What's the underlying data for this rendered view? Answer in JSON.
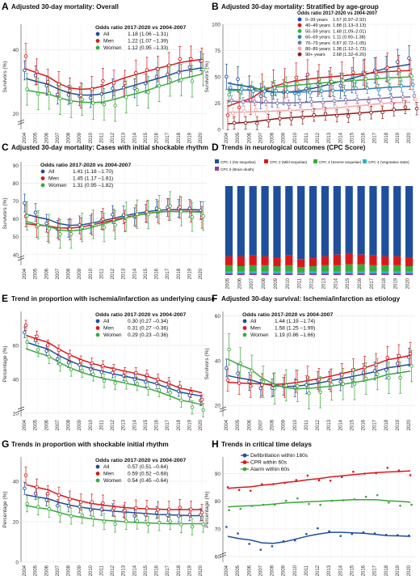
{
  "years": [
    "2004",
    "2005",
    "2006",
    "2007",
    "2008",
    "2009",
    "2010",
    "2011",
    "2012",
    "2013",
    "2014",
    "2015",
    "2016",
    "2017",
    "2018",
    "2019",
    "2020"
  ],
  "colors": {
    "blue": "#1f4e9c",
    "red": "#d7191c",
    "green": "#3ca93c"
  },
  "chart_data": [
    {
      "id": "A",
      "letter": "A",
      "type": "line",
      "title": "Adjusted 30-day mortality: Overall",
      "ylabel": "Survivors (%)",
      "ylim": [
        15,
        48
      ],
      "yticks": [
        20,
        40
      ],
      "break": true,
      "legend": {
        "header": "Odds ratio 2017-2020 vs 2004-2007",
        "placement": "top-right",
        "entries": [
          {
            "name": "All",
            "or": "1.18 (1.06 –1.31)",
            "color": "#1f4e9c"
          },
          {
            "name": "Men",
            "or": "1.22 (1.07 –1.39)",
            "color": "#d7191c"
          },
          {
            "name": "Women",
            "or": "1.12 (0.95 –1.33)",
            "color": "#3ca93c"
          }
        ]
      },
      "series": [
        {
          "name": "All",
          "color": "#1f4e9c",
          "values": [
            33,
            31,
            29,
            27,
            26,
            25,
            25,
            26,
            27,
            28,
            29,
            30,
            31,
            32,
            33,
            34,
            36
          ],
          "err": 3
        },
        {
          "name": "Men",
          "color": "#d7191c",
          "values": [
            37,
            34,
            31,
            29,
            27,
            26,
            27,
            29,
            30,
            31,
            33,
            33,
            34,
            35,
            36,
            37,
            38
          ],
          "err": 4
        },
        {
          "name": "Women",
          "color": "#3ca93c",
          "values": [
            29,
            27,
            26,
            25,
            24,
            23,
            22,
            24,
            24,
            25,
            27,
            27,
            28,
            29,
            31,
            32,
            34
          ],
          "err": 5
        }
      ]
    },
    {
      "id": "B",
      "letter": "B",
      "type": "line",
      "title": "Adjusted 30-day mortality: Stratified by age-group",
      "ylabel": "Survivors (%)",
      "ylim": [
        0,
        100
      ],
      "yticks": [
        0,
        25,
        50,
        75,
        100
      ],
      "break": false,
      "legend": {
        "header": "Odds ratio 2017-2020 vs 2004-2007",
        "placement": "top-right",
        "entries": [
          {
            "name": "0–39 years",
            "or": "1.67 (0.97–2.92)",
            "color": "#1f4e9c"
          },
          {
            "name": "40–49 years",
            "or": "1.88 (1.13–3.13)",
            "color": "#d7191c"
          },
          {
            "name": "50–59 years",
            "or": "1.48 (1.09–2.01)",
            "color": "#3ca93c"
          },
          {
            "name": "60–69 years",
            "or": "1.11 (0.90–1.38)",
            "color": "#2c7fb8"
          },
          {
            "name": "70–79 years",
            "or": "0.87 (0.72–1.05)",
            "color": "#7b6fa8"
          },
          {
            "name": "80–89 years",
            "or": "1.38 (1.12–1.73)",
            "color": "#f4a3a8"
          },
          {
            "name": "90+ years",
            "or": "2.68 (1.32–6.20)",
            "color": "#8b1a1a"
          }
        ]
      },
      "series": [
        {
          "name": "0–39 years",
          "color": "#1f4e9c",
          "values": [
            48,
            44,
            40,
            36,
            34,
            34,
            35,
            38,
            40,
            43,
            46,
            49,
            52,
            55,
            58,
            62,
            66
          ],
          "err": 12
        },
        {
          "name": "40–49 years",
          "color": "#d7191c",
          "values": [
            10,
            24,
            32,
            38,
            42,
            45,
            47,
            48,
            49,
            50,
            51,
            52,
            53,
            54,
            55,
            56,
            57
          ],
          "err": 14
        },
        {
          "name": "50–59 years",
          "color": "#3ca93c",
          "values": [
            35,
            37,
            38,
            39,
            40,
            41,
            42,
            43,
            44,
            45,
            46,
            46,
            47,
            48,
            49,
            50,
            51
          ],
          "err": 7
        },
        {
          "name": "60–69 years",
          "color": "#2c7fb8",
          "values": [
            40,
            38,
            37,
            36,
            35,
            35,
            35,
            36,
            36,
            37,
            37,
            38,
            38,
            39,
            40,
            41,
            42
          ],
          "err": 5
        },
        {
          "name": "70–79 years",
          "color": "#7b6fa8",
          "values": [
            28,
            27,
            26,
            25,
            25,
            25,
            25,
            26,
            26,
            27,
            27,
            28,
            28,
            29,
            30,
            31,
            32
          ],
          "err": 4
        },
        {
          "name": "80–89 years",
          "color": "#f4a3a8",
          "values": [
            16,
            16,
            17,
            17,
            17,
            18,
            18,
            19,
            19,
            20,
            21,
            22,
            23,
            24,
            25,
            26,
            27
          ],
          "err": 5
        },
        {
          "name": "90+ years",
          "color": "#8b1a1a",
          "values": [
            4,
            5,
            7,
            9,
            10,
            11,
            12,
            12,
            13,
            14,
            14,
            15,
            16,
            17,
            18,
            19,
            20
          ],
          "err": 6
        }
      ]
    },
    {
      "id": "C",
      "letter": "C",
      "type": "line",
      "title": "Adjusted 30-day mortality: Cases with initial shockable rhythm",
      "ylabel": "Survivors (%)",
      "ylim": [
        34,
        92
      ],
      "yticks": [
        40,
        50,
        60,
        70,
        80,
        90
      ],
      "break": true,
      "legend": {
        "header": "Odds ratio 2017-2020 vs 2004-2007",
        "placement": "top-left",
        "entries": [
          {
            "name": "All",
            "or": "1.41 (1.18 –1.70)",
            "color": "#1f4e9c"
          },
          {
            "name": "Men",
            "or": "1.45 (1.17 –1.81)",
            "color": "#d7191c"
          },
          {
            "name": "Women",
            "or": "1.31 (0.95 –1.82)",
            "color": "#3ca93c"
          }
        ]
      },
      "series": [
        {
          "name": "All",
          "color": "#1f4e9c",
          "values": [
            68,
            62,
            58,
            56,
            55,
            56,
            57,
            59,
            61,
            62,
            63,
            64,
            65,
            66,
            66,
            65,
            64
          ],
          "err": 5
        },
        {
          "name": "Men",
          "color": "#d7191c",
          "values": [
            60,
            57,
            55,
            54,
            54,
            55,
            56,
            58,
            60,
            61,
            62,
            63,
            64,
            65,
            65,
            64,
            63
          ],
          "err": 6
        },
        {
          "name": "Women",
          "color": "#3ca93c",
          "values": [
            64,
            58,
            54,
            52,
            52,
            53,
            55,
            57,
            59,
            61,
            62,
            63,
            64,
            65,
            65,
            64,
            62
          ],
          "err": 8
        }
      ]
    },
    {
      "id": "D",
      "letter": "D",
      "type": "bar",
      "title": "Trends in neurological outcomes (CPC Score)",
      "legend": {
        "placement": "top",
        "entries": [
          {
            "name": "CPC 1 (No sequelae)",
            "color": "#1f4e9c"
          },
          {
            "name": "CPC 2 (Mild sequelae)",
            "color": "#d7191c"
          },
          {
            "name": "CPC 3 (Severe sequelae)",
            "color": "#3ca93c"
          },
          {
            "name": "CPC 4 (Vegetative state)",
            "color": "#2cb5c8"
          },
          {
            "name": "CPC 5 (Brain death)",
            "color": "#8e3fa0"
          }
        ]
      },
      "categories": [
        "2005",
        "2006",
        "2007",
        "2008",
        "2009",
        "2010",
        "2011",
        "2012",
        "2013",
        "2014",
        "2015",
        "2016",
        "2017",
        "2018",
        "2019",
        "2020"
      ],
      "series": [
        {
          "name": "CPC 1 (No sequelae)",
          "color": "#1f4e9c",
          "values": [
            79,
            79,
            78,
            79,
            80,
            78,
            82,
            81,
            79,
            77,
            76,
            77,
            78,
            79,
            79,
            80
          ]
        },
        {
          "name": "CPC 2 (Mild sequelae)",
          "color": "#d7191c",
          "values": [
            10,
            11,
            11,
            10,
            10,
            11,
            9,
            9,
            10,
            12,
            12,
            11,
            11,
            10,
            10,
            10
          ]
        },
        {
          "name": "CPC 3 (Severe sequelae)",
          "color": "#3ca93c",
          "values": [
            7,
            6,
            7,
            7,
            6,
            7,
            6,
            6,
            7,
            7,
            8,
            8,
            7,
            7,
            7,
            6
          ]
        },
        {
          "name": "CPC 4 (Vegetative state)",
          "color": "#2cb5c8",
          "values": [
            2,
            2,
            2,
            2,
            2,
            2,
            2,
            2,
            2,
            2,
            2,
            2,
            2,
            2,
            2,
            2
          ]
        },
        {
          "name": "CPC 5 (Brain death)",
          "color": "#8e3fa0",
          "values": [
            2,
            2,
            2,
            2,
            2,
            2,
            1,
            2,
            2,
            2,
            2,
            2,
            2,
            2,
            2,
            2
          ]
        }
      ]
    },
    {
      "id": "E",
      "letter": "E",
      "type": "line",
      "title": "Trend in proportion with ischemia/infarction as underlying cause",
      "ylabel": "Percentage (%)",
      "ylim": [
        18,
        80
      ],
      "yticks": [
        20,
        40,
        60
      ],
      "break": true,
      "legend": {
        "header": "Odds ratio 2017-2020 vs 2004-2007",
        "placement": "top-right",
        "entries": [
          {
            "name": "All",
            "or": "0.30 (0.27 –0.34)",
            "color": "#1f4e9c"
          },
          {
            "name": "Men",
            "or": "0.31 (0.27 –0.36)",
            "color": "#d7191c"
          },
          {
            "name": "Women",
            "or": "0.29 (0.23 –0.36)",
            "color": "#3ca93c"
          }
        ]
      },
      "series": [
        {
          "name": "All",
          "color": "#1f4e9c",
          "values": [
            67,
            62,
            57,
            53,
            50,
            48,
            46,
            44,
            43,
            42,
            41,
            39,
            37,
            35,
            33,
            30,
            27
          ],
          "err": 3
        },
        {
          "name": "Men",
          "color": "#d7191c",
          "values": [
            71,
            66,
            61,
            57,
            54,
            51,
            49,
            47,
            46,
            45,
            44,
            42,
            40,
            38,
            35,
            32,
            29
          ],
          "err": 3
        },
        {
          "name": "Women",
          "color": "#3ca93c",
          "values": [
            63,
            58,
            53,
            49,
            46,
            44,
            42,
            40,
            39,
            38,
            37,
            35,
            33,
            31,
            28,
            25,
            22
          ],
          "err": 4
        }
      ]
    },
    {
      "id": "F",
      "letter": "F",
      "type": "line",
      "title": "Adjusted 30-day survival: Ischemia/infarction as etiology",
      "ylabel": "Survivors (%)",
      "ylim": [
        15,
        62
      ],
      "yticks": [
        20,
        40,
        60
      ],
      "break": true,
      "legend": {
        "header": "Odds ratio 2017-2020 vs 2004-2007",
        "placement": "top-left",
        "entries": [
          {
            "name": "All",
            "or": "1.44 (1.19 –1.74)",
            "color": "#1f4e9c"
          },
          {
            "name": "Men",
            "or": "1.58 (1.25 –1.99)",
            "color": "#d7191c"
          },
          {
            "name": "Women",
            "or": "1.19 (0.86 –1.66)",
            "color": "#3ca93c"
          }
        ]
      },
      "series": [
        {
          "name": "All",
          "color": "#1f4e9c",
          "values": [
            36,
            33,
            31,
            29,
            28,
            28,
            28,
            29,
            30,
            31,
            32,
            33,
            34,
            35,
            36,
            38,
            41
          ],
          "err": 4
        },
        {
          "name": "Men",
          "color": "#d7191c",
          "values": [
            30,
            31,
            30,
            29,
            29,
            29,
            30,
            31,
            32,
            33,
            34,
            35,
            37,
            38,
            40,
            42,
            45
          ],
          "err": 5
        },
        {
          "name": "Women",
          "color": "#3ca93c",
          "values": [
            47,
            40,
            35,
            31,
            28,
            27,
            27,
            27,
            28,
            29,
            29,
            30,
            31,
            32,
            33,
            35,
            38
          ],
          "err": 7
        }
      ]
    },
    {
      "id": "G",
      "letter": "G",
      "type": "line",
      "title": "Trends in proportion with shockable initial rhythm",
      "ylabel": "Percentage (%)",
      "ylim": [
        0,
        52
      ],
      "yticks": [
        0,
        20,
        40
      ],
      "break": false,
      "legend": {
        "header": "Odds ratio 2017-2020 vs 2004-2007",
        "placement": "top-right",
        "entries": [
          {
            "name": "All",
            "or": "0.57 (0.51 –0.64)",
            "color": "#1f4e9c"
          },
          {
            "name": "Men",
            "or": "0.59 (0.52 –0.68)",
            "color": "#d7191c"
          },
          {
            "name": "Women",
            "or": "0.54 (0.45 –0.64)",
            "color": "#3ca93c"
          }
        ]
      },
      "series": [
        {
          "name": "All",
          "color": "#1f4e9c",
          "values": [
            36,
            33,
            31,
            29,
            28,
            27,
            26,
            26,
            25,
            25,
            24,
            24,
            24,
            23,
            23,
            23,
            23
          ],
          "err": 3
        },
        {
          "name": "Men",
          "color": "#d7191c",
          "values": [
            42,
            38,
            35,
            33,
            31,
            30,
            29,
            28,
            27,
            27,
            27,
            26,
            26,
            26,
            26,
            26,
            26
          ],
          "err": 4
        },
        {
          "name": "Women",
          "color": "#3ca93c",
          "values": [
            30,
            28,
            26,
            24,
            23,
            22,
            21,
            21,
            20,
            20,
            20,
            19,
            19,
            19,
            19,
            19,
            19
          ],
          "err": 4
        }
      ]
    },
    {
      "id": "H",
      "letter": "H",
      "type": "line",
      "title": "Trends in critical time delays",
      "ylabel": "Percentage (%)",
      "ylim": [
        58,
        96
      ],
      "yticks": [
        60,
        70,
        80,
        90
      ],
      "break": true,
      "legend": {
        "placement": "top-left",
        "entries": [
          {
            "name": "Defibrillation within 180s",
            "color": "#1f4e9c"
          },
          {
            "name": "CPR within 60s",
            "color": "#d7191c"
          },
          {
            "name": "Alarm within 60s",
            "color": "#3ca93c"
          }
        ]
      },
      "series": [
        {
          "name": "Defibrillation within 180s",
          "color": "#1f4e9c",
          "values": [
            70,
            67,
            65,
            64,
            64,
            65,
            66,
            68,
            69,
            69,
            69,
            69,
            68,
            68,
            68,
            67,
            67
          ],
          "err": 0
        },
        {
          "name": "CPR within 60s",
          "color": "#d7191c",
          "values": [
            84,
            85,
            85,
            86,
            86,
            87,
            87,
            88,
            88,
            89,
            89,
            90,
            90,
            90,
            91,
            91,
            91
          ],
          "err": 0
        },
        {
          "name": "Alarm within 60s",
          "color": "#3ca93c",
          "values": [
            78,
            78,
            78,
            79,
            79,
            79,
            80,
            80,
            80,
            80,
            80,
            81,
            81,
            81,
            80,
            80,
            79
          ],
          "err": 0
        }
      ]
    }
  ]
}
